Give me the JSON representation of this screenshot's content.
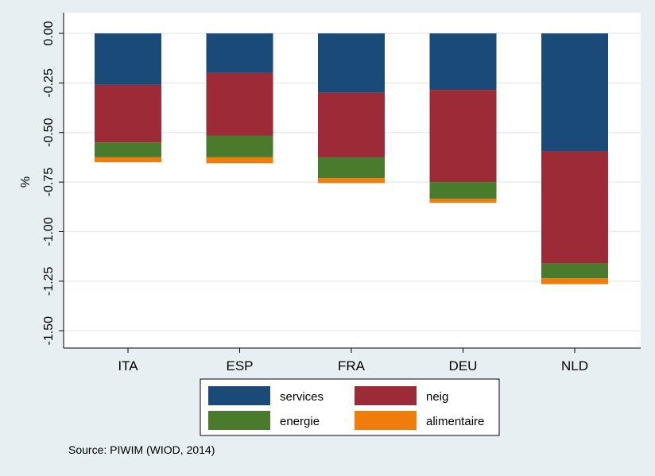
{
  "chart_data": {
    "type": "bar",
    "stacked": true,
    "categories": [
      "ITA",
      "ESP",
      "FRA",
      "DEU",
      "NLD"
    ],
    "series": [
      {
        "name": "services",
        "color": "#1a4a78",
        "values": [
          -0.26,
          -0.2,
          -0.3,
          -0.285,
          -0.595
        ]
      },
      {
        "name": "neig",
        "color": "#9c2b37",
        "values": [
          -0.29,
          -0.315,
          -0.325,
          -0.465,
          -0.565
        ]
      },
      {
        "name": "energie",
        "color": "#4a7a2c",
        "values": [
          -0.075,
          -0.11,
          -0.105,
          -0.085,
          -0.075
        ]
      },
      {
        "name": "alimentaire",
        "color": "#ef7d0e",
        "values": [
          -0.025,
          -0.03,
          -0.025,
          -0.02,
          -0.03
        ]
      }
    ],
    "ylabel": "%",
    "xlabel": "",
    "ylim": [
      -1.6,
      0.05
    ],
    "yticks": [
      0,
      -0.25,
      -0.5,
      -0.75,
      -1.0,
      -1.25,
      -1.5
    ],
    "ytick_labels": [
      "0.00",
      "-0.25",
      "-0.50",
      "-0.75",
      "-1.00",
      "-1.25",
      "-1.50"
    ],
    "grid": true,
    "legend_position": "bottom",
    "plot_background": "#ffffff",
    "page_background": "#e8eff2"
  },
  "note": "Source: PIWIM (WIOD, 2014)"
}
